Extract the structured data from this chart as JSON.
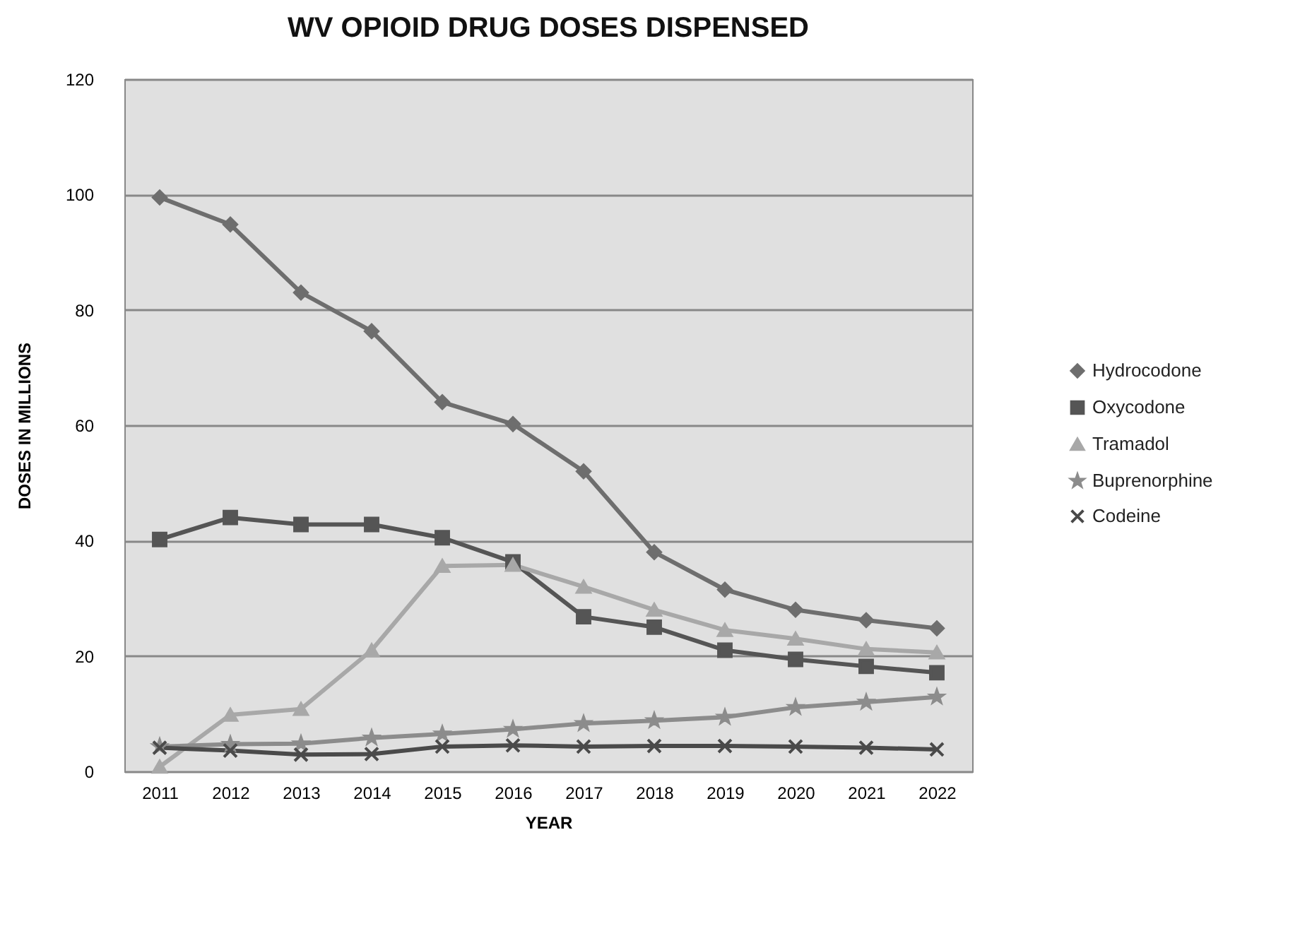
{
  "chart_data": {
    "type": "line",
    "title": "WV OPIOID DRUG DOSES DISPENSED",
    "xlabel": "YEAR",
    "ylabel": "DOSES IN MILLIONS",
    "categories": [
      "2011",
      "2012",
      "2013",
      "2014",
      "2015",
      "2016",
      "2017",
      "2018",
      "2019",
      "2020",
      "2021",
      "2022"
    ],
    "series": [
      {
        "name": "Hydrocodone",
        "color": "#6e6e6e",
        "marker": "diamond",
        "values": [
          99.5,
          94.8,
          83,
          76.3,
          64,
          60.2,
          52,
          38,
          31.5,
          28,
          26.2,
          24.8
        ]
      },
      {
        "name": "Oxycodone",
        "color": "#555555",
        "marker": "square",
        "values": [
          40.2,
          44,
          42.8,
          42.8,
          40.5,
          36.3,
          26.8,
          25,
          21,
          19.4,
          18.2,
          17.1
        ]
      },
      {
        "name": "Tramadol",
        "color": "#a8a8a8",
        "marker": "triangle",
        "values": [
          0.8,
          9.8,
          10.8,
          21,
          35.6,
          35.8,
          32,
          28,
          24.5,
          23,
          21.2,
          20.6
        ]
      },
      {
        "name": "Buprenorphine",
        "color": "#8c8c8c",
        "marker": "star",
        "values": [
          4.3,
          4.7,
          4.8,
          5.8,
          6.5,
          7.3,
          8.3,
          8.8,
          9.4,
          11.1,
          12,
          12.9
        ]
      },
      {
        "name": "Codeine",
        "color": "#4a4a4a",
        "marker": "cross",
        "values": [
          4.1,
          3.6,
          2.9,
          3.0,
          4.3,
          4.5,
          4.3,
          4.4,
          4.4,
          4.3,
          4.1,
          3.8
        ]
      }
    ],
    "ylim": [
      0,
      120
    ],
    "yticks": [
      0,
      20,
      40,
      60,
      80,
      100,
      120
    ],
    "grid": "y",
    "legend": "right",
    "line_style": "solid"
  }
}
